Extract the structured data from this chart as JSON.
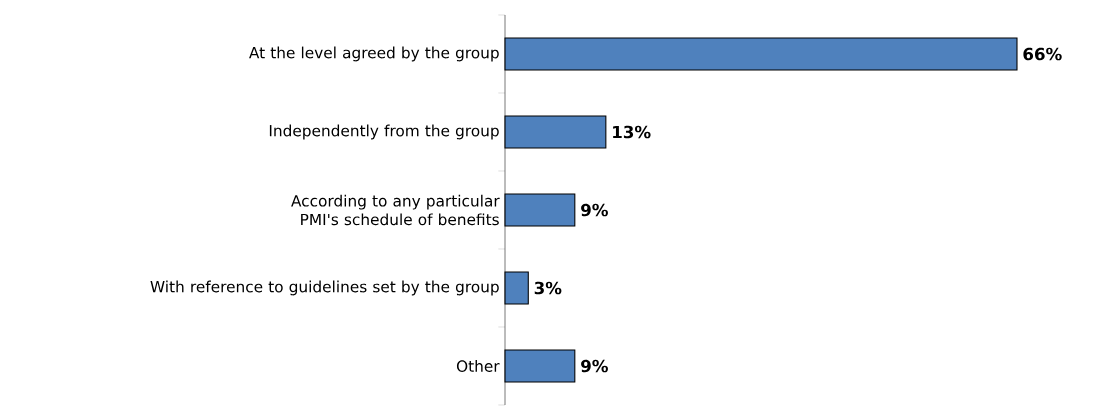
{
  "chart_data": {
    "type": "bar",
    "orientation": "horizontal",
    "categories": [
      "At the level agreed by the group",
      "Independently from the group",
      "According to any particular PMI's schedule of benefits",
      "With reference to guidelines set by the group",
      "Other"
    ],
    "values": [
      66,
      13,
      9,
      3,
      9
    ],
    "value_labels": [
      "66%",
      "13%",
      "9%",
      "3%",
      "9%"
    ],
    "color": "#4f81bd"
  }
}
